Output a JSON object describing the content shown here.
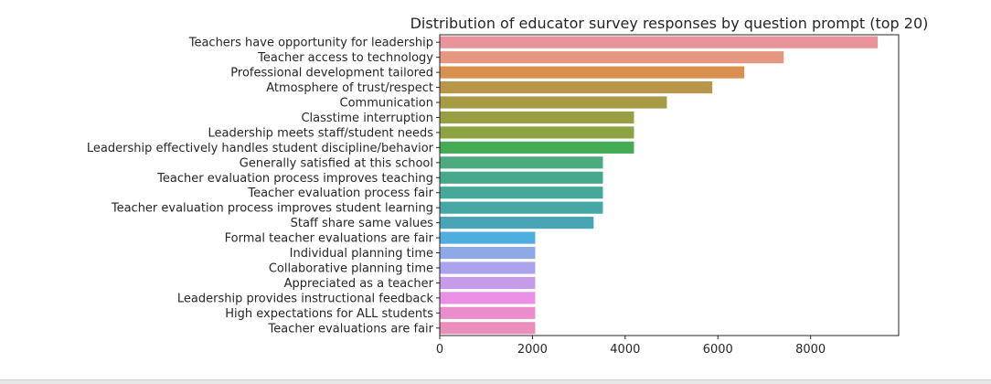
{
  "chart_data": {
    "type": "bar",
    "orientation": "horizontal",
    "title": "Distribution of educator survey responses by question prompt (top 20)",
    "xlabel": "",
    "ylabel": "",
    "xlim": [
      0,
      9900
    ],
    "xticks": [
      0,
      2000,
      4000,
      6000,
      8000
    ],
    "grid": false,
    "legend": "none",
    "categories": [
      "Teachers have opportunity for leadership",
      "Teacher access to technology",
      "Professional development tailored",
      "Atmosphere of trust/respect",
      "Communication",
      "Classtime interruption",
      "Leadership meets staff/student needs",
      "Leadership effectively handles student discipline/behavior",
      "Generally satisfied at this school",
      "Teacher evaluation process improves teaching",
      "Teacher evaluation process fair",
      "Teacher evaluation process improves student learning",
      "Staff share same values",
      "Formal teacher evaluations are fair",
      "Individual planning time",
      "Collaborative planning time",
      "Appreciated as a teacher",
      "Leadership provides instructional feedback",
      "High expectations for ALL students",
      "Teacher evaluations are fair"
    ],
    "values": [
      9450,
      7420,
      6570,
      5880,
      4900,
      4190,
      4190,
      4190,
      3520,
      3520,
      3520,
      3520,
      3320,
      2060,
      2060,
      2060,
      2060,
      2060,
      2060,
      2060
    ],
    "colors": [
      "#e8949a",
      "#e6977f",
      "#d9904f",
      "#b9954a",
      "#a79b45",
      "#9a9e43",
      "#8ca243",
      "#46ab55",
      "#4caa7f",
      "#47a98c",
      "#45a898",
      "#46a7a5",
      "#49a5b6",
      "#4eaee0",
      "#8fa8e6",
      "#aba3ec",
      "#c79be9",
      "#e98fe6",
      "#eb8dcd",
      "#ea8fbb"
    ]
  }
}
